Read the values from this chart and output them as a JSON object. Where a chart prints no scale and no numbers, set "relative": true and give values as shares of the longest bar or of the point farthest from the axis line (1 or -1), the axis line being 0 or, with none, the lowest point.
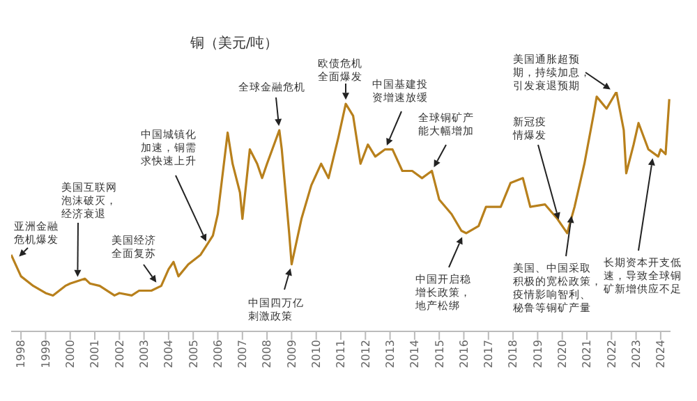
{
  "chart_data": {
    "type": "line",
    "title": "铜（美元/吨）",
    "relative": true,
    "grid": false,
    "legend": false,
    "marker": "none",
    "xlim": [
      1997.6,
      2024.4
    ],
    "xticks": [
      1998,
      1999,
      2000,
      2001,
      2002,
      2003,
      2004,
      2005,
      2006,
      2007,
      2008,
      2009,
      2010,
      2011,
      2012,
      2013,
      2014,
      2015,
      2016,
      2017,
      2018,
      2019,
      2020,
      2021,
      2022,
      2023,
      2024
    ],
    "series": [
      {
        "color": "#b8801c",
        "x": [
          1997.6,
          1998.0,
          1998.5,
          1999.0,
          1999.3,
          1999.8,
          2000.0,
          2000.6,
          2000.8,
          2001.2,
          2001.8,
          2002.0,
          2002.5,
          2002.8,
          2003.3,
          2003.7,
          2004.0,
          2004.2,
          2004.4,
          2004.8,
          2005.3,
          2005.8,
          2006.0,
          2006.4,
          2006.6,
          2006.9,
          2007.0,
          2007.3,
          2007.6,
          2007.8,
          2008.0,
          2008.5,
          2008.6,
          2008.9,
          2009.0,
          2009.4,
          2009.8,
          2010.2,
          2010.5,
          2010.9,
          2011.2,
          2011.5,
          2011.8,
          2012.1,
          2012.4,
          2012.8,
          2013.1,
          2013.5,
          2013.9,
          2014.3,
          2014.7,
          2015.0,
          2015.5,
          2015.9,
          2016.1,
          2016.6,
          2016.9,
          2017.5,
          2017.9,
          2018.4,
          2018.7,
          2019.3,
          2019.8,
          2020.2,
          2020.5,
          2020.9,
          2021.3,
          2021.4,
          2021.8,
          2022.2,
          2022.5,
          2022.6,
          2022.9,
          2023.1,
          2023.5,
          2023.9,
          2024.0,
          2024.2,
          2024.35
        ],
        "values": [
          0.32,
          0.23,
          0.19,
          0.16,
          0.15,
          0.19,
          0.2,
          0.22,
          0.2,
          0.19,
          0.15,
          0.16,
          0.15,
          0.17,
          0.17,
          0.19,
          0.26,
          0.29,
          0.23,
          0.28,
          0.32,
          0.4,
          0.49,
          0.83,
          0.7,
          0.58,
          0.47,
          0.76,
          0.7,
          0.64,
          0.7,
          0.84,
          0.76,
          0.41,
          0.28,
          0.47,
          0.61,
          0.7,
          0.64,
          0.81,
          0.95,
          0.9,
          0.7,
          0.78,
          0.73,
          0.76,
          0.76,
          0.67,
          0.67,
          0.64,
          0.67,
          0.55,
          0.49,
          0.42,
          0.41,
          0.44,
          0.52,
          0.52,
          0.62,
          0.64,
          0.52,
          0.53,
          0.47,
          0.41,
          0.52,
          0.7,
          0.92,
          0.98,
          0.93,
          1,
          0.84,
          0.66,
          0.78,
          0.87,
          0.76,
          0.73,
          0.76,
          0.74,
          0.97
        ]
      }
    ],
    "annotations": [
      {
        "text": "亚洲金融危机爆发",
        "x": 1997.8,
        "y": 0.3
      },
      {
        "text": "美国互联网泡沫破灭，经济衰退",
        "x": 2000.3,
        "y": 0.21
      },
      {
        "text": "美国经济全面复苏",
        "x": 2003.6,
        "y": 0.19
      },
      {
        "text": "中国城镇化加速，铜需求快速上升",
        "x": 2005.6,
        "y": 0.36
      },
      {
        "text": "全球金融危机",
        "x": 2008.5,
        "y": 0.84
      },
      {
        "text": "中国四万亿刺激政策",
        "x": 2009.0,
        "y": 0.28
      },
      {
        "text": "欧债危机全面爆发",
        "x": 2011.2,
        "y": 0.95
      },
      {
        "text": "中国基建投资增速放缓",
        "x": 2012.8,
        "y": 0.76
      },
      {
        "text": "全球铜矿产能大幅增加",
        "x": 2014.7,
        "y": 0.67
      },
      {
        "text": "中国开启稳增长政策，地产松绑",
        "x": 2016.0,
        "y": 0.41
      },
      {
        "text": "新冠疫情爆发",
        "x": 2019.9,
        "y": 0.45
      },
      {
        "text": "美国、中国采取积极的宽松政策，疫情影响智利、秘鲁等铜矿产量",
        "x": 2020.4,
        "y": 0.5
      },
      {
        "text": "美国通胀超预期，持续加息，引发衰退预期",
        "x": 2022.1,
        "y": 1
      },
      {
        "text": "长期资本开支低速，导致全球铜矿新增供应不足",
        "x": 2023.7,
        "y": 0.74
      }
    ]
  }
}
